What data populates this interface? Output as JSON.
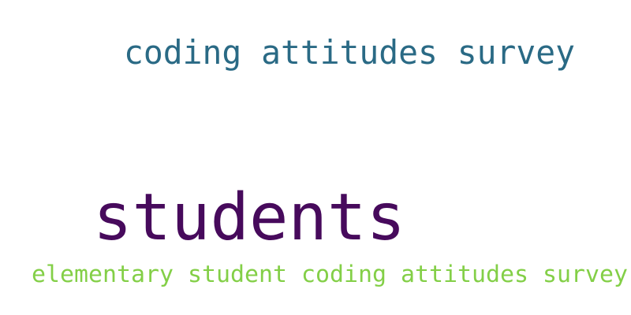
{
  "words": [
    {
      "text": "coding attitudes survey",
      "color": "#2a6a85"
    },
    {
      "text": "students",
      "color": "#470a5c"
    },
    {
      "text": "elementary student coding attitudes survey",
      "color": "#83cf47"
    }
  ]
}
